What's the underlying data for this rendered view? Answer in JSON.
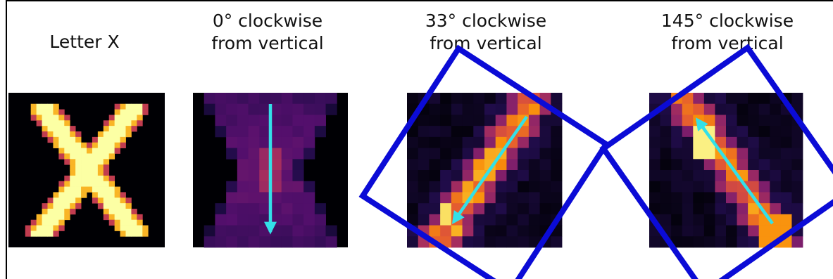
{
  "panels": [
    {
      "label_lines": [
        "Letter X"
      ]
    },
    {
      "label_lines": [
        "0° clockwise",
        "from vertical"
      ]
    },
    {
      "label_lines": [
        "33° clockwise",
        "from vertical"
      ]
    },
    {
      "label_lines": [
        "145° clockwise",
        "from vertical"
      ]
    }
  ],
  "colors": {
    "background": "#ffffff",
    "frame": "#000000",
    "rotation_box": "#0b0bd6",
    "direction_arrow": "#33e0e8",
    "heatmap_low": "#000004",
    "heatmap_high": "#fcffa4"
  },
  "icons": {
    "rotation_box": "rotated-square-outline",
    "direction_arrow": "arrow-icon"
  },
  "rotations_deg": [
    0,
    33,
    145
  ]
}
